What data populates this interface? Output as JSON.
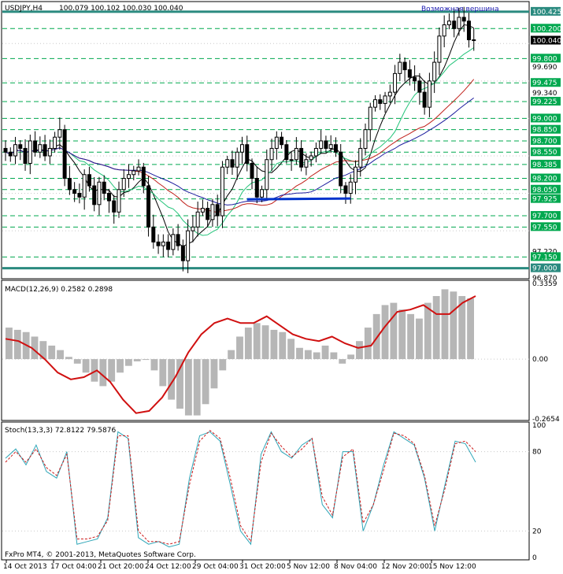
{
  "header": {
    "symbol": "USDJPY,H4",
    "ohlc": "100.079 100.102 100.030 100.040",
    "annotation": "Возможная вершина"
  },
  "macd_panel": {
    "label": "MACD(12,26,9) 0.2582 0.2898"
  },
  "stoch_panel": {
    "label": "Stoch(13,3,3) 72.8122 79.5876"
  },
  "footer": {
    "copyright": "FxPro MT4, © 2001-2013, MetaQuotes Software Corp."
  },
  "colors": {
    "grid": "#c9c9c9",
    "levels": "#00a84f",
    "resistance": "#2a8a7f",
    "candles": "#000000",
    "ma_black": "#000000",
    "ma_green": "#24c47a",
    "ma_red": "#c0201a",
    "ma_blue": "#1c1c9e",
    "support_line": "#0033cc",
    "macd_hist": "#b6b6b6",
    "macd_signal": "#d01010",
    "stoch_main": "#2fa6b8",
    "stoch_signal": "#cc1a1a",
    "current_price_box": "#000000",
    "annotation_text": "#1c1cb0"
  },
  "chart_data": [
    {
      "type": "candlestick",
      "title": "USDJPY,H4",
      "ylim": [
        96.87,
        100.55
      ],
      "y_ticks": [
        "100.425",
        "100.200",
        "100.040",
        "99.800",
        "99.690",
        "99.475",
        "99.340",
        "99.225",
        "99.000",
        "98.850",
        "98.700",
        "98.550",
        "98.385",
        "98.200",
        "98.050",
        "97.925",
        "97.700",
        "97.550",
        "97.220",
        "97.150",
        "97.000",
        "96.870"
      ],
      "x_ticks": [
        "14 Oct 2013",
        "17 Oct 04:00",
        "21 Oct 20:00",
        "24 Oct 12:00",
        "29 Oct 04:00",
        "31 Oct 20:00",
        "5 Nov 12:00",
        "8 Nov 04:00",
        "12 Nov 20:00",
        "15 Nov 12:00"
      ],
      "horizontal_levels": [
        100.2,
        99.8,
        99.475,
        99.225,
        99.0,
        98.85,
        98.7,
        98.55,
        98.385,
        98.2,
        98.05,
        97.925,
        97.7,
        97.55,
        97.15
      ],
      "resistance_levels": [
        100.425,
        97.0
      ],
      "current_price": 100.04,
      "support_line": {
        "from": 97.92,
        "to": 97.93
      },
      "closes": [
        98.55,
        98.5,
        98.65,
        98.6,
        98.4,
        98.7,
        98.55,
        98.65,
        98.5,
        98.6,
        98.75,
        98.85,
        98.2,
        98.05,
        98.0,
        97.95,
        98.25,
        98.1,
        97.85,
        98.15,
        98.0,
        97.9,
        97.75,
        98.05,
        98.2,
        98.25,
        98.3,
        98.35,
        98.1,
        97.55,
        97.35,
        97.3,
        97.35,
        97.25,
        97.45,
        97.3,
        97.1,
        97.5,
        97.55,
        97.75,
        97.8,
        97.65,
        97.85,
        97.7,
        98.35,
        98.45,
        98.35,
        98.55,
        98.65,
        98.4,
        98.2,
        97.95,
        98.05,
        98.45,
        98.6,
        98.75,
        98.65,
        98.45,
        98.45,
        98.6,
        98.35,
        98.45,
        98.5,
        98.6,
        98.7,
        98.6,
        98.65,
        98.55,
        98.1,
        98.0,
        98.15,
        98.35,
        98.6,
        98.85,
        99.15,
        99.25,
        99.2,
        99.3,
        99.35,
        99.6,
        99.75,
        99.65,
        99.55,
        99.5,
        99.35,
        99.15,
        99.5,
        99.75,
        100.1,
        100.25,
        100.3,
        100.2,
        100.35,
        100.3,
        100.05,
        100.04
      ],
      "indicators": [
        "moving average black",
        "moving average green",
        "moving average red",
        "moving average blue"
      ]
    },
    {
      "type": "bar",
      "title": "MACD(12,26,9) 0.2582 0.2898",
      "ylim": [
        -0.2654,
        0.3359
      ],
      "y_ticks": [
        "0.3359",
        "0.00",
        "-0.2654"
      ],
      "histogram": [
        0.14,
        0.13,
        0.12,
        0.1,
        0.08,
        0.06,
        0.04,
        0.01,
        -0.02,
        -0.06,
        -0.1,
        -0.12,
        -0.1,
        -0.06,
        -0.03,
        -0.01,
        0.0,
        -0.05,
        -0.12,
        -0.18,
        -0.22,
        -0.25,
        -0.25,
        -0.2,
        -0.13,
        -0.05,
        0.04,
        0.1,
        0.14,
        0.16,
        0.15,
        0.13,
        0.12,
        0.09,
        0.05,
        0.04,
        0.03,
        0.06,
        0.03,
        -0.02,
        0.02,
        0.08,
        0.14,
        0.2,
        0.24,
        0.25,
        0.22,
        0.2,
        0.18,
        0.25,
        0.28,
        0.31,
        0.3,
        0.28,
        0.27
      ],
      "signal": [
        0.09,
        0.08,
        0.05,
        0.0,
        -0.06,
        -0.09,
        -0.08,
        -0.05,
        -0.1,
        -0.18,
        -0.24,
        -0.23,
        -0.17,
        -0.08,
        0.03,
        0.11,
        0.16,
        0.18,
        0.16,
        0.16,
        0.19,
        0.15,
        0.11,
        0.09,
        0.08,
        0.1,
        0.07,
        0.05,
        0.06,
        0.14,
        0.21,
        0.22,
        0.24,
        0.2,
        0.2,
        0.25,
        0.28
      ]
    },
    {
      "type": "line",
      "title": "Stoch(13,3,3) 72.8122 79.5876",
      "ylim": [
        0,
        100
      ],
      "y_ticks": [
        "100",
        "80",
        "20",
        "0"
      ],
      "series": [
        {
          "name": "main",
          "values": [
            75,
            82,
            70,
            85,
            65,
            60,
            80,
            10,
            12,
            14,
            30,
            95,
            90,
            15,
            10,
            12,
            8,
            10,
            60,
            92,
            95,
            88,
            55,
            20,
            10,
            78,
            95,
            80,
            75,
            85,
            90,
            40,
            30,
            80,
            80,
            20,
            40,
            70,
            95,
            90,
            85,
            60,
            20,
            55,
            88,
            86,
            72
          ]
        },
        {
          "name": "signal",
          "values": [
            72,
            80,
            72,
            82,
            68,
            62,
            78,
            14,
            14,
            16,
            28,
            92,
            92,
            20,
            12,
            12,
            10,
            12,
            55,
            88,
            96,
            90,
            60,
            24,
            12,
            72,
            94,
            84,
            76,
            82,
            90,
            46,
            32,
            76,
            82,
            26,
            40,
            66,
            94,
            92,
            86,
            62,
            24,
            52,
            86,
            88,
            80
          ]
        }
      ]
    }
  ]
}
